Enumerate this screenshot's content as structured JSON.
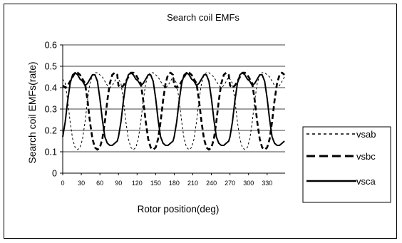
{
  "chart_data": {
    "type": "line",
    "title": "Search coil EMFs",
    "xlabel": "Rotor position(deg)",
    "ylabel": "Search coil EMFs(rate)",
    "xlim": [
      0,
      359
    ],
    "ylim": [
      0,
      0.6
    ],
    "x_ticks": [
      0,
      30,
      60,
      90,
      120,
      150,
      180,
      210,
      240,
      270,
      300,
      330
    ],
    "y_ticks": [
      0,
      0.1,
      0.2,
      0.3,
      0.4,
      0.5,
      0.6
    ],
    "y_tick_labels": [
      "0",
      "0.1",
      "0.2",
      "0.3",
      "0.4",
      "0.5",
      "0.6"
    ],
    "grid": "horizontal",
    "legend_position": "right",
    "electrical_period_deg": 90,
    "series": [
      {
        "name": "vsab",
        "style": "thin-dashed",
        "x": [
          0,
          4,
          8,
          12,
          16,
          20,
          24,
          28,
          32,
          36,
          40,
          44,
          48,
          52,
          56,
          60,
          64,
          68,
          72,
          76,
          80,
          84,
          88
        ],
        "y": [
          0.44,
          0.42,
          0.34,
          0.24,
          0.16,
          0.12,
          0.11,
          0.12,
          0.16,
          0.24,
          0.34,
          0.42,
          0.46,
          0.47,
          0.47,
          0.46,
          0.45,
          0.43,
          0.41,
          0.4,
          0.41,
          0.43,
          0.45
        ]
      },
      {
        "name": "vsbc",
        "style": "thick-dashed",
        "x": [
          0,
          4,
          8,
          12,
          16,
          20,
          24,
          28,
          32,
          36,
          40,
          44,
          48,
          52,
          56,
          60,
          64,
          68,
          72,
          76,
          80,
          84,
          88
        ],
        "y": [
          0.41,
          0.4,
          0.41,
          0.43,
          0.45,
          0.47,
          0.47,
          0.46,
          0.44,
          0.42,
          0.34,
          0.24,
          0.16,
          0.12,
          0.11,
          0.12,
          0.16,
          0.24,
          0.34,
          0.42,
          0.46,
          0.47,
          0.46
        ]
      },
      {
        "name": "vsca",
        "style": "thick-solid",
        "x": [
          0,
          4,
          8,
          12,
          16,
          20,
          24,
          28,
          32,
          36,
          40,
          44,
          48,
          52,
          56,
          60,
          64,
          68,
          72,
          76,
          80,
          84,
          88
        ],
        "y": [
          0.17,
          0.24,
          0.34,
          0.42,
          0.46,
          0.47,
          0.46,
          0.44,
          0.43,
          0.41,
          0.42,
          0.44,
          0.46,
          0.46,
          0.43,
          0.35,
          0.25,
          0.17,
          0.14,
          0.13,
          0.13,
          0.14,
          0.15
        ]
      }
    ]
  }
}
